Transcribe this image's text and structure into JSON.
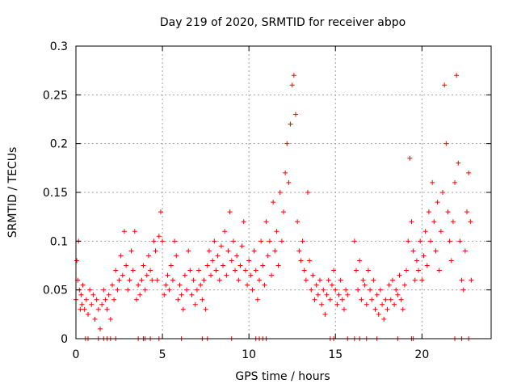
{
  "chart_data": {
    "type": "scatter",
    "title": "Day 219 of 2020, SRMTID for receiver abpo",
    "xlabel": "GPS time / hours",
    "ylabel": "SRMTID / TECUs",
    "xlim": [
      0,
      24
    ],
    "ylim": [
      0,
      0.3
    ],
    "xticks": [
      0,
      5,
      10,
      15,
      20
    ],
    "xtick_labels": [
      "0",
      "5",
      "10",
      "15",
      "20"
    ],
    "yticks": [
      0,
      0.05,
      0.1,
      0.15,
      0.2,
      0.25,
      0.3
    ],
    "ytick_labels": [
      "0",
      "0.05",
      "0.1",
      "0.15",
      "0.2",
      "0.25",
      "0.3"
    ],
    "grid": true,
    "marker": "+",
    "color": "#ff0000",
    "series": [
      {
        "name": "SRMTID",
        "points": [
          [
            0.0,
            0.04
          ],
          [
            0.05,
            0.08
          ],
          [
            0.1,
            0.06
          ],
          [
            0.15,
            0.1
          ],
          [
            0.2,
            0.05
          ],
          [
            0.25,
            0.03
          ],
          [
            0.3,
            0.045
          ],
          [
            0.35,
            0.035
          ],
          [
            0.4,
            0.055
          ],
          [
            0.5,
            0.03
          ],
          [
            0.6,
            0.04
          ],
          [
            0.7,
            0.025
          ],
          [
            0.8,
            0.05
          ],
          [
            0.9,
            0.035
          ],
          [
            1.0,
            0.045
          ],
          [
            1.1,
            0.02
          ],
          [
            1.2,
            0.04
          ],
          [
            1.3,
            0.03
          ],
          [
            1.4,
            0.01
          ],
          [
            1.5,
            0.035
          ],
          [
            1.6,
            0.05
          ],
          [
            1.7,
            0.04
          ],
          [
            1.8,
            0.03
          ],
          [
            1.9,
            0.045
          ],
          [
            2.0,
            0.02
          ],
          [
            2.1,
            0.055
          ],
          [
            2.2,
            0.04
          ],
          [
            2.3,
            0.07
          ],
          [
            2.4,
            0.05
          ],
          [
            2.5,
            0.06
          ],
          [
            2.6,
            0.085
          ],
          [
            2.7,
            0.065
          ],
          [
            2.8,
            0.11
          ],
          [
            2.9,
            0.075
          ],
          [
            3.0,
            0.05
          ],
          [
            3.1,
            0.06
          ],
          [
            3.2,
            0.09
          ],
          [
            3.3,
            0.07
          ],
          [
            3.4,
            0.11
          ],
          [
            3.5,
            0.04
          ],
          [
            3.6,
            0.055
          ],
          [
            3.7,
            0.045
          ],
          [
            3.8,
            0.06
          ],
          [
            3.9,
            0.075
          ],
          [
            4.0,
            0.05
          ],
          [
            4.1,
            0.065
          ],
          [
            4.2,
            0.085
          ],
          [
            4.3,
            0.07
          ],
          [
            4.4,
            0.06
          ],
          [
            4.5,
            0.1
          ],
          [
            4.6,
            0.09
          ],
          [
            4.7,
            0.06
          ],
          [
            4.8,
            0.105
          ],
          [
            4.9,
            0.13
          ],
          [
            5.0,
            0.1
          ],
          [
            5.1,
            0.045
          ],
          [
            5.2,
            0.055
          ],
          [
            5.3,
            0.065
          ],
          [
            5.4,
            0.05
          ],
          [
            5.5,
            0.075
          ],
          [
            5.6,
            0.06
          ],
          [
            5.7,
            0.1
          ],
          [
            5.8,
            0.085
          ],
          [
            5.9,
            0.04
          ],
          [
            6.0,
            0.055
          ],
          [
            6.1,
            0.045
          ],
          [
            6.2,
            0.03
          ],
          [
            6.3,
            0.065
          ],
          [
            6.4,
            0.05
          ],
          [
            6.5,
            0.09
          ],
          [
            6.6,
            0.07
          ],
          [
            6.7,
            0.045
          ],
          [
            6.8,
            0.06
          ],
          [
            6.9,
            0.035
          ],
          [
            7.0,
            0.05
          ],
          [
            7.1,
            0.07
          ],
          [
            7.2,
            0.055
          ],
          [
            7.3,
            0.04
          ],
          [
            7.4,
            0.06
          ],
          [
            7.5,
            0.03
          ],
          [
            7.6,
            0.075
          ],
          [
            7.7,
            0.09
          ],
          [
            7.8,
            0.065
          ],
          [
            7.9,
            0.08
          ],
          [
            8.0,
            0.1
          ],
          [
            8.1,
            0.07
          ],
          [
            8.2,
            0.085
          ],
          [
            8.3,
            0.06
          ],
          [
            8.4,
            0.095
          ],
          [
            8.5,
            0.075
          ],
          [
            8.6,
            0.11
          ],
          [
            8.7,
            0.065
          ],
          [
            8.8,
            0.09
          ],
          [
            8.9,
            0.13
          ],
          [
            9.0,
            0.08
          ],
          [
            9.1,
            0.1
          ],
          [
            9.2,
            0.07
          ],
          [
            9.3,
            0.085
          ],
          [
            9.4,
            0.06
          ],
          [
            9.5,
            0.075
          ],
          [
            9.6,
            0.095
          ],
          [
            9.7,
            0.12
          ],
          [
            9.8,
            0.07
          ],
          [
            9.9,
            0.055
          ],
          [
            10.0,
            0.08
          ],
          [
            10.1,
            0.065
          ],
          [
            10.2,
            0.05
          ],
          [
            10.3,
            0.09
          ],
          [
            10.4,
            0.07
          ],
          [
            10.5,
            0.04
          ],
          [
            10.6,
            0.06
          ],
          [
            10.7,
            0.1
          ],
          [
            10.8,
            0.075
          ],
          [
            10.9,
            0.055
          ],
          [
            11.0,
            0.12
          ],
          [
            11.1,
            0.085
          ],
          [
            11.2,
            0.1
          ],
          [
            11.3,
            0.065
          ],
          [
            11.4,
            0.14
          ],
          [
            11.5,
            0.09
          ],
          [
            11.6,
            0.11
          ],
          [
            11.7,
            0.075
          ],
          [
            11.8,
            0.15
          ],
          [
            11.9,
            0.1
          ],
          [
            12.0,
            0.13
          ],
          [
            12.1,
            0.17
          ],
          [
            12.2,
            0.2
          ],
          [
            12.3,
            0.16
          ],
          [
            12.4,
            0.22
          ],
          [
            12.5,
            0.26
          ],
          [
            12.6,
            0.27
          ],
          [
            12.7,
            0.23
          ],
          [
            12.8,
            0.12
          ],
          [
            12.9,
            0.09
          ],
          [
            13.0,
            0.08
          ],
          [
            13.1,
            0.1
          ],
          [
            13.2,
            0.07
          ],
          [
            13.3,
            0.06
          ],
          [
            13.4,
            0.15
          ],
          [
            13.5,
            0.08
          ],
          [
            13.6,
            0.05
          ],
          [
            13.7,
            0.065
          ],
          [
            13.8,
            0.04
          ],
          [
            13.9,
            0.055
          ],
          [
            14.0,
            0.045
          ],
          [
            14.1,
            0.06
          ],
          [
            14.2,
            0.035
          ],
          [
            14.3,
            0.05
          ],
          [
            14.4,
            0.025
          ],
          [
            14.5,
            0.045
          ],
          [
            14.6,
            0.06
          ],
          [
            14.7,
            0.04
          ],
          [
            14.8,
            0.055
          ],
          [
            14.9,
            0.07
          ],
          [
            15.0,
            0.05
          ],
          [
            15.1,
            0.035
          ],
          [
            15.2,
            0.045
          ],
          [
            15.3,
            0.06
          ],
          [
            15.4,
            0.04
          ],
          [
            15.5,
            0.03
          ],
          [
            15.6,
            0.05
          ],
          [
            15.7,
            0.045
          ],
          [
            16.1,
            0.1
          ],
          [
            16.2,
            0.07
          ],
          [
            16.3,
            0.05
          ],
          [
            16.4,
            0.08
          ],
          [
            16.5,
            0.04
          ],
          [
            16.6,
            0.06
          ],
          [
            16.7,
            0.055
          ],
          [
            16.8,
            0.035
          ],
          [
            16.9,
            0.07
          ],
          [
            17.0,
            0.05
          ],
          [
            17.1,
            0.04
          ],
          [
            17.2,
            0.06
          ],
          [
            17.3,
            0.03
          ],
          [
            17.4,
            0.045
          ],
          [
            17.5,
            0.025
          ],
          [
            17.6,
            0.05
          ],
          [
            17.7,
            0.035
          ],
          [
            17.8,
            0.02
          ],
          [
            17.9,
            0.04
          ],
          [
            18.0,
            0.03
          ],
          [
            18.1,
            0.055
          ],
          [
            18.2,
            0.04
          ],
          [
            18.3,
            0.06
          ],
          [
            18.4,
            0.035
          ],
          [
            18.5,
            0.05
          ],
          [
            18.6,
            0.045
          ],
          [
            18.7,
            0.065
          ],
          [
            18.8,
            0.04
          ],
          [
            18.9,
            0.03
          ],
          [
            19.0,
            0.055
          ],
          [
            19.1,
            0.07
          ],
          [
            19.2,
            0.1
          ],
          [
            19.3,
            0.185
          ],
          [
            19.4,
            0.12
          ],
          [
            19.5,
            0.09
          ],
          [
            19.6,
            0.06
          ],
          [
            19.7,
            0.08
          ],
          [
            19.8,
            0.07
          ],
          [
            19.9,
            0.1
          ],
          [
            20.0,
            0.06
          ],
          [
            20.1,
            0.085
          ],
          [
            20.2,
            0.11
          ],
          [
            20.3,
            0.075
          ],
          [
            20.4,
            0.13
          ],
          [
            20.5,
            0.1
          ],
          [
            20.6,
            0.16
          ],
          [
            20.7,
            0.12
          ],
          [
            20.8,
            0.09
          ],
          [
            20.9,
            0.14
          ],
          [
            21.0,
            0.07
          ],
          [
            21.1,
            0.11
          ],
          [
            21.2,
            0.15
          ],
          [
            21.3,
            0.26
          ],
          [
            21.4,
            0.2
          ],
          [
            21.5,
            0.13
          ],
          [
            21.6,
            0.1
          ],
          [
            21.7,
            0.08
          ],
          [
            21.8,
            0.12
          ],
          [
            21.9,
            0.16
          ],
          [
            22.0,
            0.27
          ],
          [
            22.1,
            0.18
          ],
          [
            22.2,
            0.1
          ],
          [
            22.3,
            0.06
          ],
          [
            22.4,
            0.05
          ],
          [
            22.5,
            0.09
          ],
          [
            22.6,
            0.13
          ],
          [
            22.7,
            0.17
          ],
          [
            22.8,
            0.12
          ],
          [
            22.85,
            0.06
          ],
          [
            0.55,
            0.0
          ],
          [
            0.7,
            0.0
          ],
          [
            1.3,
            0.0
          ],
          [
            1.6,
            0.0
          ],
          [
            1.8,
            0.0
          ],
          [
            2.0,
            0.0
          ],
          [
            2.3,
            0.0
          ],
          [
            3.6,
            0.0
          ],
          [
            3.9,
            0.0
          ],
          [
            4.0,
            0.0
          ],
          [
            4.3,
            0.0
          ],
          [
            4.8,
            0.0
          ],
          [
            6.1,
            0.0
          ],
          [
            7.3,
            0.0
          ],
          [
            7.6,
            0.0
          ],
          [
            9.0,
            0.0
          ],
          [
            10.4,
            0.0
          ],
          [
            10.6,
            0.0
          ],
          [
            10.8,
            0.0
          ],
          [
            11.0,
            0.0
          ],
          [
            14.7,
            0.0
          ],
          [
            14.9,
            0.0
          ],
          [
            15.7,
            0.0
          ],
          [
            16.1,
            0.0
          ],
          [
            16.4,
            0.0
          ],
          [
            16.8,
            0.0
          ],
          [
            17.4,
            0.0
          ],
          [
            18.6,
            0.0
          ],
          [
            19.4,
            0.0
          ],
          [
            19.5,
            0.0
          ],
          [
            21.9,
            0.0
          ],
          [
            22.3,
            0.0
          ],
          [
            22.7,
            0.0
          ]
        ]
      }
    ]
  }
}
